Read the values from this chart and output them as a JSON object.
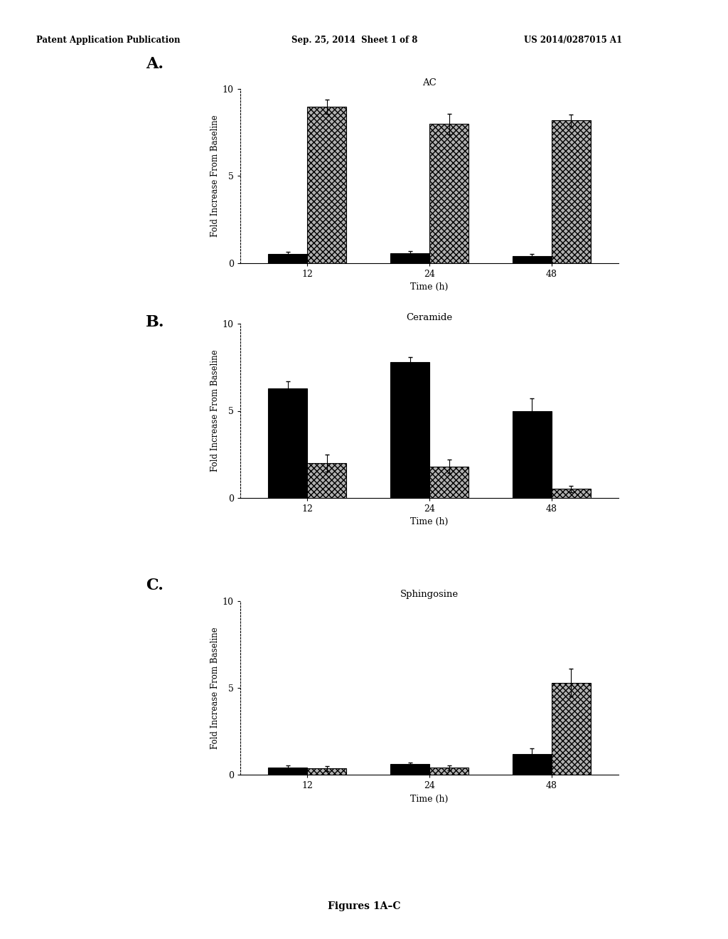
{
  "header_left": "Patent Application Publication",
  "header_center": "Sep. 25, 2014  Sheet 1 of 8",
  "header_right": "US 2014/0287015 A1",
  "footer": "Figures 1A–C",
  "panel_labels": [
    "A.",
    "B.",
    "C."
  ],
  "charts": [
    {
      "title": "AC",
      "ylabel": "Fold Increase From Baseline",
      "xlabel": "Time (h)",
      "time_points": [
        12,
        24,
        48
      ],
      "black_bars": [
        0.5,
        0.55,
        0.4
      ],
      "black_errors": [
        0.12,
        0.12,
        0.1
      ],
      "hatched_bars": [
        9.0,
        8.0,
        8.2
      ],
      "hatched_errors": [
        0.4,
        0.6,
        0.35
      ],
      "ylim": [
        0,
        10
      ],
      "yticks": [
        0,
        5,
        10
      ]
    },
    {
      "title": "Ceramide",
      "ylabel": "Fold Increase From Baseline",
      "xlabel": "Time (h)",
      "time_points": [
        12,
        24,
        48
      ],
      "black_bars": [
        6.3,
        7.8,
        5.0
      ],
      "black_errors": [
        0.4,
        0.3,
        0.7
      ],
      "hatched_bars": [
        2.0,
        1.8,
        0.5
      ],
      "hatched_errors": [
        0.5,
        0.4,
        0.2
      ],
      "ylim": [
        0,
        10
      ],
      "yticks": [
        0,
        5,
        10
      ]
    },
    {
      "title": "Sphingosine",
      "ylabel": "Fold Increase From Baseline",
      "xlabel": "Time (h)",
      "time_points": [
        12,
        24,
        48
      ],
      "black_bars": [
        0.4,
        0.6,
        1.2
      ],
      "black_errors": [
        0.15,
        0.1,
        0.3
      ],
      "hatched_bars": [
        0.35,
        0.4,
        5.3
      ],
      "hatched_errors": [
        0.15,
        0.15,
        0.8
      ],
      "ylim": [
        0,
        10
      ],
      "yticks": [
        0,
        5,
        10
      ]
    }
  ],
  "bg_color": "#ffffff",
  "bar_width": 0.32,
  "hatch_pattern": "xxxx",
  "black_color": "#000000",
  "edge_color": "#000000",
  "hatched_face_color": "#b0b0b0"
}
